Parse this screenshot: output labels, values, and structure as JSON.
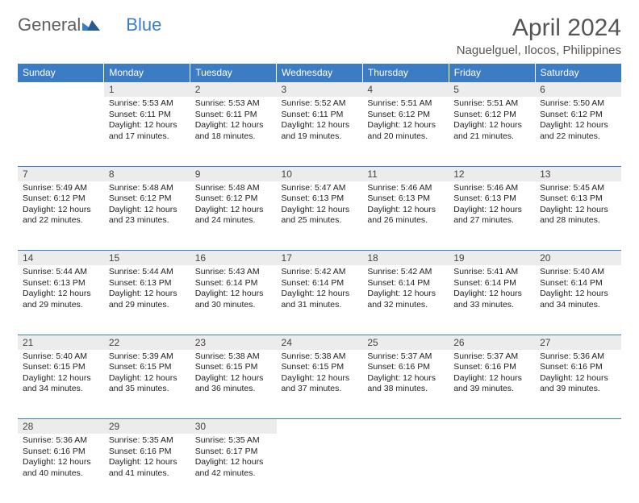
{
  "logo": {
    "part1": "General",
    "part2": "Blue"
  },
  "title": "April 2024",
  "location": "Naguelguel, Ilocos, Philippines",
  "colors": {
    "header_bg": "#3b7cc4",
    "header_text": "#ffffff",
    "daynum_bg": "#ececec",
    "border": "#3b7cc4",
    "text": "#222222",
    "title_text": "#555555"
  },
  "weekdays": [
    "Sunday",
    "Monday",
    "Tuesday",
    "Wednesday",
    "Thursday",
    "Friday",
    "Saturday"
  ],
  "weeks": [
    [
      null,
      {
        "n": "1",
        "sr": "5:53 AM",
        "ss": "6:11 PM",
        "dl": "12 hours and 17 minutes."
      },
      {
        "n": "2",
        "sr": "5:53 AM",
        "ss": "6:11 PM",
        "dl": "12 hours and 18 minutes."
      },
      {
        "n": "3",
        "sr": "5:52 AM",
        "ss": "6:11 PM",
        "dl": "12 hours and 19 minutes."
      },
      {
        "n": "4",
        "sr": "5:51 AM",
        "ss": "6:12 PM",
        "dl": "12 hours and 20 minutes."
      },
      {
        "n": "5",
        "sr": "5:51 AM",
        "ss": "6:12 PM",
        "dl": "12 hours and 21 minutes."
      },
      {
        "n": "6",
        "sr": "5:50 AM",
        "ss": "6:12 PM",
        "dl": "12 hours and 22 minutes."
      }
    ],
    [
      {
        "n": "7",
        "sr": "5:49 AM",
        "ss": "6:12 PM",
        "dl": "12 hours and 22 minutes."
      },
      {
        "n": "8",
        "sr": "5:48 AM",
        "ss": "6:12 PM",
        "dl": "12 hours and 23 minutes."
      },
      {
        "n": "9",
        "sr": "5:48 AM",
        "ss": "6:12 PM",
        "dl": "12 hours and 24 minutes."
      },
      {
        "n": "10",
        "sr": "5:47 AM",
        "ss": "6:13 PM",
        "dl": "12 hours and 25 minutes."
      },
      {
        "n": "11",
        "sr": "5:46 AM",
        "ss": "6:13 PM",
        "dl": "12 hours and 26 minutes."
      },
      {
        "n": "12",
        "sr": "5:46 AM",
        "ss": "6:13 PM",
        "dl": "12 hours and 27 minutes."
      },
      {
        "n": "13",
        "sr": "5:45 AM",
        "ss": "6:13 PM",
        "dl": "12 hours and 28 minutes."
      }
    ],
    [
      {
        "n": "14",
        "sr": "5:44 AM",
        "ss": "6:13 PM",
        "dl": "12 hours and 29 minutes."
      },
      {
        "n": "15",
        "sr": "5:44 AM",
        "ss": "6:13 PM",
        "dl": "12 hours and 29 minutes."
      },
      {
        "n": "16",
        "sr": "5:43 AM",
        "ss": "6:14 PM",
        "dl": "12 hours and 30 minutes."
      },
      {
        "n": "17",
        "sr": "5:42 AM",
        "ss": "6:14 PM",
        "dl": "12 hours and 31 minutes."
      },
      {
        "n": "18",
        "sr": "5:42 AM",
        "ss": "6:14 PM",
        "dl": "12 hours and 32 minutes."
      },
      {
        "n": "19",
        "sr": "5:41 AM",
        "ss": "6:14 PM",
        "dl": "12 hours and 33 minutes."
      },
      {
        "n": "20",
        "sr": "5:40 AM",
        "ss": "6:14 PM",
        "dl": "12 hours and 34 minutes."
      }
    ],
    [
      {
        "n": "21",
        "sr": "5:40 AM",
        "ss": "6:15 PM",
        "dl": "12 hours and 34 minutes."
      },
      {
        "n": "22",
        "sr": "5:39 AM",
        "ss": "6:15 PM",
        "dl": "12 hours and 35 minutes."
      },
      {
        "n": "23",
        "sr": "5:38 AM",
        "ss": "6:15 PM",
        "dl": "12 hours and 36 minutes."
      },
      {
        "n": "24",
        "sr": "5:38 AM",
        "ss": "6:15 PM",
        "dl": "12 hours and 37 minutes."
      },
      {
        "n": "25",
        "sr": "5:37 AM",
        "ss": "6:16 PM",
        "dl": "12 hours and 38 minutes."
      },
      {
        "n": "26",
        "sr": "5:37 AM",
        "ss": "6:16 PM",
        "dl": "12 hours and 39 minutes."
      },
      {
        "n": "27",
        "sr": "5:36 AM",
        "ss": "6:16 PM",
        "dl": "12 hours and 39 minutes."
      }
    ],
    [
      {
        "n": "28",
        "sr": "5:36 AM",
        "ss": "6:16 PM",
        "dl": "12 hours and 40 minutes."
      },
      {
        "n": "29",
        "sr": "5:35 AM",
        "ss": "6:16 PM",
        "dl": "12 hours and 41 minutes."
      },
      {
        "n": "30",
        "sr": "5:35 AM",
        "ss": "6:17 PM",
        "dl": "12 hours and 42 minutes."
      },
      null,
      null,
      null,
      null
    ]
  ],
  "labels": {
    "sunrise": "Sunrise: ",
    "sunset": "Sunset: ",
    "daylight": "Daylight: "
  }
}
